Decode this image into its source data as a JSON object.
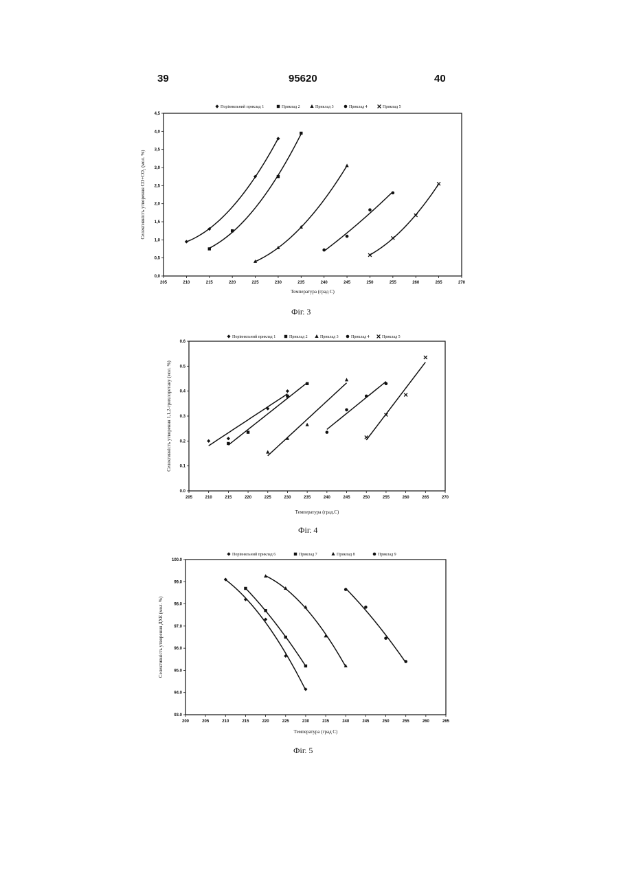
{
  "header": {
    "left": "39",
    "center": "95620",
    "right": "40"
  },
  "chart_data": [
    {
      "type": "scatter",
      "caption": "Фіг. 3",
      "xlabel": "Температура (град С)",
      "ylabel": "Селективність утворення CO+CO₂ (мол. %)",
      "xlim": [
        205,
        270
      ],
      "ylim": [
        0.0,
        4.5
      ],
      "x_ticks": [
        "205",
        "210",
        "215",
        "220",
        "225",
        "230",
        "235",
        "240",
        "245",
        "250",
        "255",
        "260",
        "265",
        "270"
      ],
      "y_ticks": [
        "0,0",
        "0,5",
        "1,0",
        "1,5",
        "2,0",
        "2,5",
        "3,0",
        "3,5",
        "4,0",
        "4,5"
      ],
      "legend_position": "top",
      "series": [
        {
          "name": "Порівняльний приклад 1",
          "marker": "diamond",
          "x": [
            210,
            215,
            225,
            230
          ],
          "y": [
            0.95,
            1.3,
            2.75,
            3.8
          ]
        },
        {
          "name": "Приклад 2",
          "marker": "square",
          "x": [
            215,
            220,
            230,
            235
          ],
          "y": [
            0.75,
            1.25,
            2.75,
            3.95
          ]
        },
        {
          "name": "Приклад 3",
          "marker": "triangle",
          "x": [
            225,
            230,
            235,
            245
          ],
          "y": [
            0.4,
            0.78,
            1.35,
            3.05
          ]
        },
        {
          "name": "Приклад 4",
          "marker": "circle",
          "x": [
            240,
            245,
            250,
            255
          ],
          "y": [
            0.72,
            1.1,
            1.83,
            2.3
          ]
        },
        {
          "name": "Приклад 5",
          "marker": "x",
          "x": [
            250,
            255,
            260,
            265
          ],
          "y": [
            0.58,
            1.05,
            1.68,
            2.55
          ]
        }
      ]
    },
    {
      "type": "scatter",
      "caption": "Фіг. 4",
      "xlabel": "Температура (град.С)",
      "ylabel": "Селективність утворення 1,1,2-трихлоретану (мол. %)",
      "xlim": [
        205,
        270
      ],
      "ylim": [
        0.0,
        0.6
      ],
      "x_ticks": [
        "205",
        "210",
        "215",
        "220",
        "225",
        "230",
        "235",
        "240",
        "245",
        "250",
        "255",
        "260",
        "265",
        "270"
      ],
      "y_ticks": [
        "0.0",
        "0.1",
        "0.2",
        "0.3",
        "0.4",
        "0.5",
        "0.6"
      ],
      "legend_position": "top",
      "series": [
        {
          "name": "Порівняльний приклад 1",
          "marker": "diamond",
          "x": [
            210,
            215,
            225,
            230
          ],
          "y": [
            0.2,
            0.21,
            0.33,
            0.4
          ]
        },
        {
          "name": "Приклад 2",
          "marker": "square",
          "x": [
            215,
            220,
            230,
            235
          ],
          "y": [
            0.19,
            0.235,
            0.38,
            0.43
          ]
        },
        {
          "name": "Приклад 3",
          "marker": "triangle",
          "x": [
            225,
            230,
            235,
            245
          ],
          "y": [
            0.155,
            0.21,
            0.265,
            0.445
          ]
        },
        {
          "name": "Приклад 4",
          "marker": "circle",
          "x": [
            240,
            245,
            250,
            255
          ],
          "y": [
            0.235,
            0.325,
            0.38,
            0.43
          ]
        },
        {
          "name": "Приклад 5",
          "marker": "x",
          "x": [
            250,
            255,
            260,
            265
          ],
          "y": [
            0.215,
            0.305,
            0.385,
            0.535
          ]
        }
      ]
    },
    {
      "type": "scatter",
      "caption": "Фіг. 5",
      "xlabel": "Температура (град С)",
      "ylabel": "Селективність утворення ДХЕ (мол. %)",
      "xlim": [
        200,
        265
      ],
      "ylim": [
        93.0,
        100.0
      ],
      "x_ticks": [
        "200",
        "205",
        "210",
        "215",
        "220",
        "225",
        "230",
        "235",
        "240",
        "245",
        "250",
        "255",
        "260",
        "265"
      ],
      "y_ticks": [
        "93.0",
        "94.0",
        "95.0",
        "96.0",
        "97.0",
        "98.0",
        "99.0",
        "100.0"
      ],
      "legend_position": "top",
      "series": [
        {
          "name": "Порівняльний приклад 6",
          "marker": "diamond",
          "x": [
            210,
            215,
            220,
            225,
            230
          ],
          "y": [
            99.1,
            98.2,
            97.3,
            95.65,
            94.15
          ]
        },
        {
          "name": "Приклад 7",
          "marker": "square",
          "x": [
            215,
            220,
            225,
            230
          ],
          "y": [
            98.7,
            97.7,
            96.5,
            95.2
          ]
        },
        {
          "name": "Приклад 8",
          "marker": "triangle",
          "x": [
            220,
            225,
            230,
            235,
            240
          ],
          "y": [
            99.25,
            98.7,
            97.85,
            96.55,
            95.2
          ]
        },
        {
          "name": "Приклад 9",
          "marker": "circle",
          "x": [
            240,
            245,
            250,
            255
          ],
          "y": [
            98.65,
            97.85,
            96.45,
            95.4
          ]
        }
      ]
    }
  ]
}
